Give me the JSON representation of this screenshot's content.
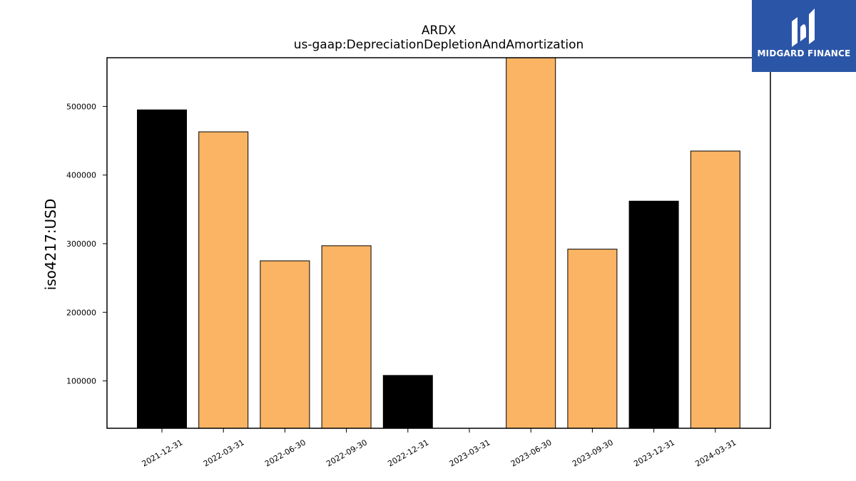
{
  "chart_data": {
    "type": "bar",
    "title": "ARDX",
    "subtitle": "us-gaap:DepreciationDepletionAndAmortization",
    "xlabel": "",
    "ylabel": "iso4217:USD",
    "categories": [
      "2021-12-31",
      "2022-03-31",
      "2022-06-30",
      "2022-09-30",
      "2022-12-31",
      "2023-03-31",
      "2023-06-30",
      "2023-09-30",
      "2023-12-31",
      "2024-03-31"
    ],
    "values": [
      495000,
      463000,
      275000,
      297000,
      108000,
      30000,
      575000,
      292000,
      362000,
      435000
    ],
    "bar_colors": [
      "#000000",
      "#fbb463",
      "#fbb463",
      "#fbb463",
      "#000000",
      "#fbb463",
      "#fbb463",
      "#fbb463",
      "#000000",
      "#fbb463"
    ],
    "ylim": [
      31000,
      571000
    ],
    "yticks": [
      100000,
      200000,
      300000,
      400000,
      500000
    ],
    "grid": false,
    "legend": "none"
  },
  "logo": {
    "text": "MIDGARD FINANCE",
    "color": "#2b56a8"
  }
}
